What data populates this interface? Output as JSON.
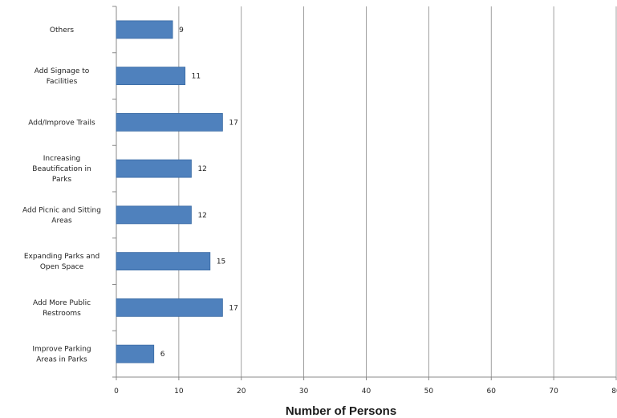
{
  "chart_data": {
    "type": "bar",
    "orientation": "horizontal",
    "categories": [
      "Others",
      "Add Signage to Facilities",
      "Add/Improve Trails",
      "Increasing Beautification in Parks",
      "Add Picnic and Sitting Areas",
      "Expanding Parks and Open Space",
      "Add More Public Restrooms",
      "Improve Parking Areas in Parks"
    ],
    "category_lines": [
      [
        "Others"
      ],
      [
        "Add Signage to",
        "Facilities"
      ],
      [
        "Add/Improve Trails"
      ],
      [
        "Increasing",
        "Beautification in",
        "Parks"
      ],
      [
        "Add Picnic and Sitting",
        "Areas"
      ],
      [
        "Expanding Parks and",
        "Open Space"
      ],
      [
        "Add More Public",
        "Restrooms"
      ],
      [
        "Improve Parking",
        "Areas in Parks"
      ]
    ],
    "values": [
      9,
      11,
      17,
      12,
      12,
      15,
      17,
      6
    ],
    "data_labels": [
      "9",
      "11",
      "17",
      "12",
      "12",
      "15",
      "17",
      "6"
    ],
    "xlabel": "Number of Persons",
    "ylabel": "",
    "title": "",
    "xlim": [
      0,
      80
    ],
    "x_ticks": [
      0,
      10,
      20,
      30,
      40,
      50,
      60,
      70,
      80
    ],
    "grid": "vertical-major",
    "legend": "none",
    "colors": {
      "bar_fill": "#4f81bd",
      "bar_stroke": "#3a6aa3",
      "grid": "#888888",
      "axis": "#888888"
    }
  }
}
